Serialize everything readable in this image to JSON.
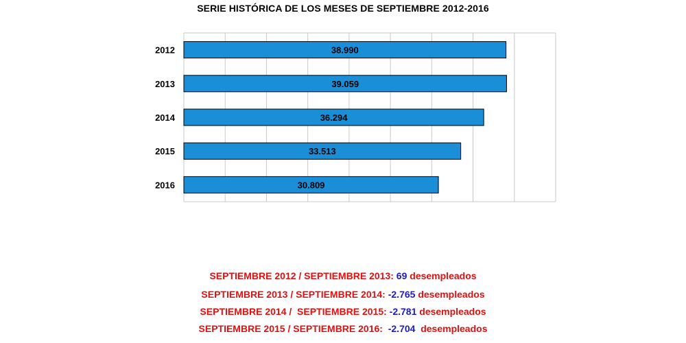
{
  "chart_data": {
    "type": "bar",
    "orientation": "horizontal",
    "title": "SERIE HISTÓRICA DE LOS MESES DE SEPTIEMBRE 2012-2016",
    "categories": [
      "2012",
      "2013",
      "2014",
      "2015",
      "2016"
    ],
    "values": [
      38990,
      39059,
      36294,
      33513,
      30809
    ],
    "value_labels": [
      "38.990",
      "39.059",
      "36.294",
      "33.513",
      "30.809"
    ],
    "xlim": [
      0,
      45000
    ],
    "grid": true,
    "colors": {
      "bar_fill": "#1a8fd8",
      "bar_stroke": "#000000",
      "grid": "#c8c8c8"
    }
  },
  "summary": [
    {
      "label": "SEPTIEMBRE 2012 / SEPTIEMBRE 2013: ",
      "value": "69",
      "unit": " desempleados"
    },
    {
      "label": "SEPTIEMBRE 2013 / SEPTIEMBRE 2014: ",
      "value": "-2.765",
      "unit": " desempleados"
    },
    {
      "label": "SEPTIEMBRE 2014 /  SEPTIEMBRE 2015: ",
      "value": "-2.781",
      "unit": " desempleados"
    },
    {
      "label": "SEPTIEMBRE 2015 / SEPTIEMBRE 2016:  ",
      "value": "-2.704",
      "unit": "  desempleados"
    }
  ],
  "colors": {
    "summary_text": "#e01010",
    "summary_value": "#1a1ad0"
  }
}
